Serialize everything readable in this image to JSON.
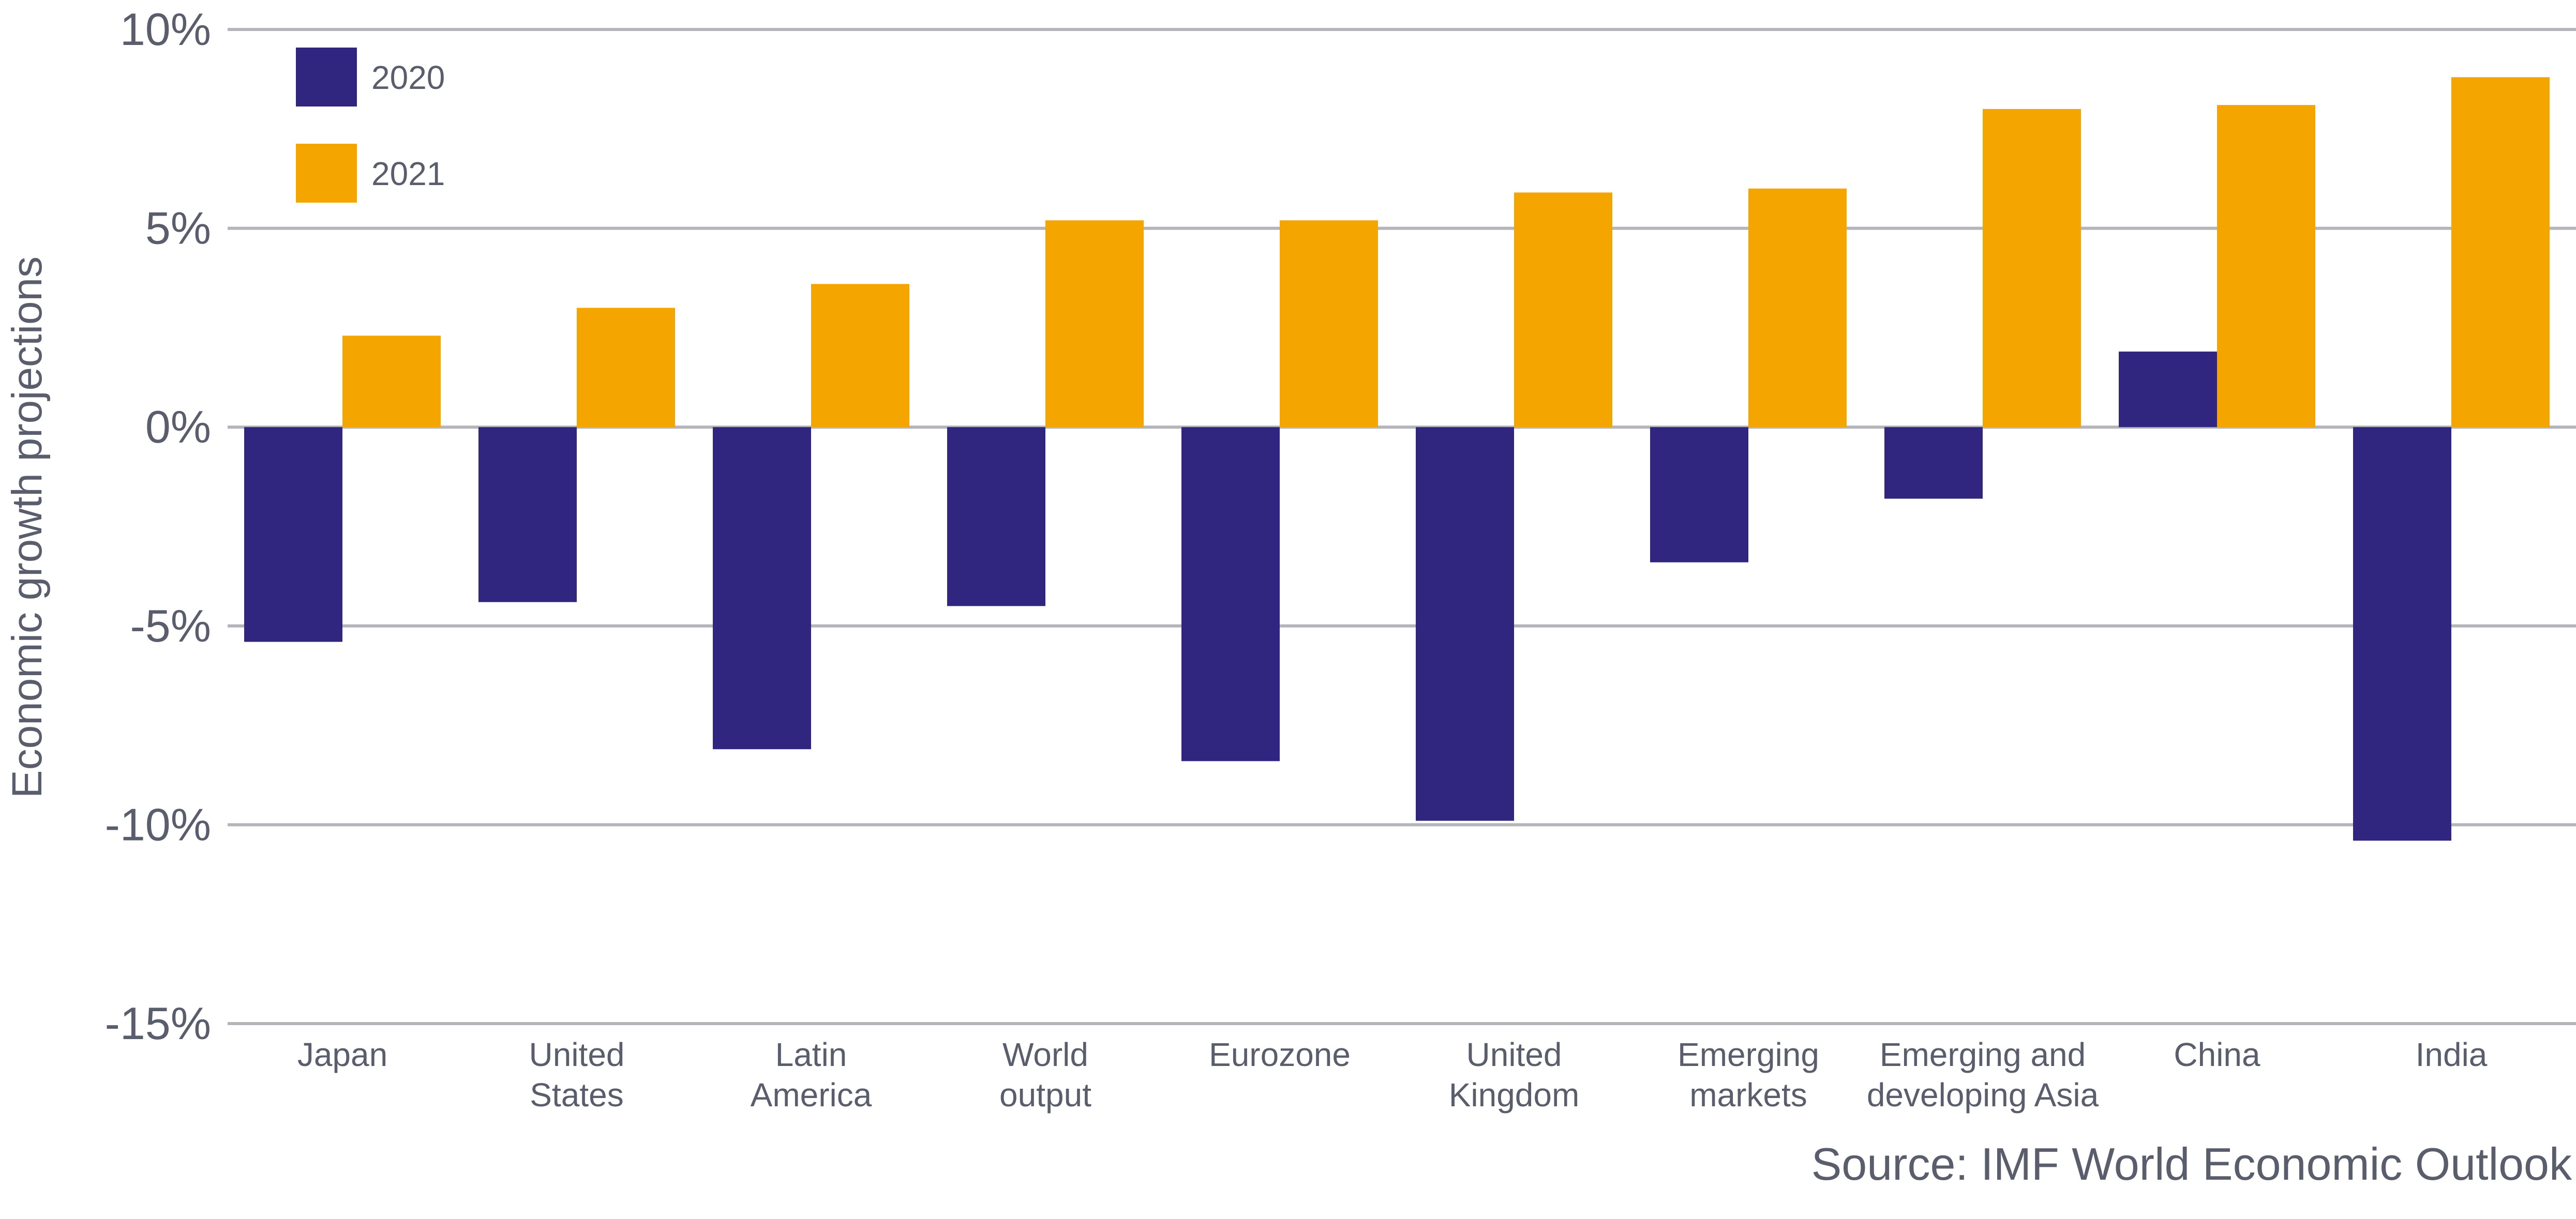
{
  "chart_data": {
    "type": "bar",
    "ylabel": "Economic growth projections",
    "xlabel": "",
    "ylim": [
      -15,
      10
    ],
    "yticks": [
      10,
      5,
      0,
      -5,
      -10,
      -15
    ],
    "ytick_labels": [
      "10%",
      "5%",
      "0%",
      "-5%",
      "-10%",
      "-15%"
    ],
    "grid": true,
    "legend_position": "top-left",
    "categories": [
      [
        "Japan"
      ],
      [
        "United",
        "States"
      ],
      [
        "Latin",
        "America"
      ],
      [
        "World",
        "output"
      ],
      [
        "Eurozone"
      ],
      [
        "United",
        "Kingdom"
      ],
      [
        "Emerging",
        "markets"
      ],
      [
        "Emerging and",
        "developing Asia"
      ],
      [
        "China"
      ],
      [
        "India"
      ]
    ],
    "series": [
      {
        "name": "2020",
        "color": "#302680",
        "values": [
          -5.4,
          -4.4,
          -8.1,
          -4.5,
          -8.4,
          -9.9,
          -3.4,
          -1.8,
          1.9,
          -10.4
        ]
      },
      {
        "name": "2021",
        "color": "#f5a500",
        "values": [
          2.3,
          3.0,
          3.6,
          5.2,
          5.2,
          5.9,
          6.0,
          8.0,
          8.1,
          8.8
        ]
      }
    ],
    "source": "Source: IMF World Economic Outlook"
  }
}
